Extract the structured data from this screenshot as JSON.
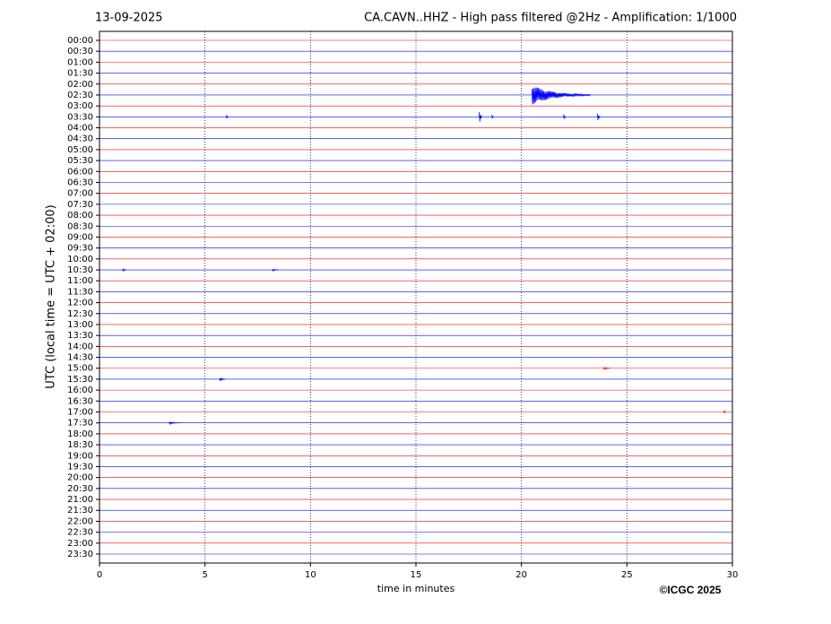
{
  "chart_data": {
    "type": "helicorder",
    "date": "13-09-2025",
    "title": "CA.CAVN..HHZ - High pass filtered @2Hz - Amplification: 1/1000",
    "ylabel": "UTC (local time = UTC + 02:00)",
    "xlabel": "time in minutes",
    "copyright": "©ICGC 2025",
    "categories": [
      "00:00",
      "00:30",
      "01:00",
      "01:30",
      "02:00",
      "02:30",
      "03:00",
      "03:30",
      "04:00",
      "04:30",
      "05:00",
      "05:30",
      "06:00",
      "06:30",
      "07:00",
      "07:30",
      "08:00",
      "08:30",
      "09:00",
      "09:30",
      "10:00",
      "10:30",
      "11:00",
      "11:30",
      "12:00",
      "12:30",
      "13:00",
      "13:30",
      "14:00",
      "14:30",
      "15:00",
      "15:30",
      "16:00",
      "16:30",
      "17:00",
      "17:30",
      "18:00",
      "18:30",
      "19:00",
      "19:30",
      "20:00",
      "20:30",
      "21:00",
      "21:30",
      "22:00",
      "22:30",
      "23:00",
      "23:30"
    ],
    "colors": [
      "red",
      "blue"
    ],
    "xlim": [
      0,
      30
    ],
    "xticks": [
      0,
      5,
      10,
      15,
      20,
      25,
      30
    ],
    "grid": true,
    "events": [
      {
        "row": 5,
        "x": 20.5,
        "duration": 2.8,
        "amplitude": 0.9
      },
      {
        "row": 7,
        "x": 18.0,
        "duration": 0.15,
        "amplitude": 0.75
      },
      {
        "row": 7,
        "x": 23.6,
        "duration": 0.15,
        "amplitude": 0.5
      },
      {
        "row": 7,
        "x": 22.0,
        "duration": 0.12,
        "amplitude": 0.35
      },
      {
        "row": 7,
        "x": 18.6,
        "duration": 0.1,
        "amplitude": 0.3
      },
      {
        "row": 7,
        "x": 6.0,
        "duration": 0.12,
        "amplitude": 0.25
      },
      {
        "row": 21,
        "x": 1.1,
        "duration": 0.2,
        "amplitude": 0.15
      },
      {
        "row": 21,
        "x": 8.2,
        "duration": 0.3,
        "amplitude": 0.12
      },
      {
        "row": 30,
        "x": 23.9,
        "duration": 0.4,
        "amplitude": 0.12
      },
      {
        "row": 31,
        "x": 5.7,
        "duration": 0.3,
        "amplitude": 0.2
      },
      {
        "row": 34,
        "x": 29.6,
        "duration": 0.1,
        "amplitude": 0.25
      },
      {
        "row": 35,
        "x": 3.3,
        "duration": 0.6,
        "amplitude": 0.12
      }
    ]
  }
}
